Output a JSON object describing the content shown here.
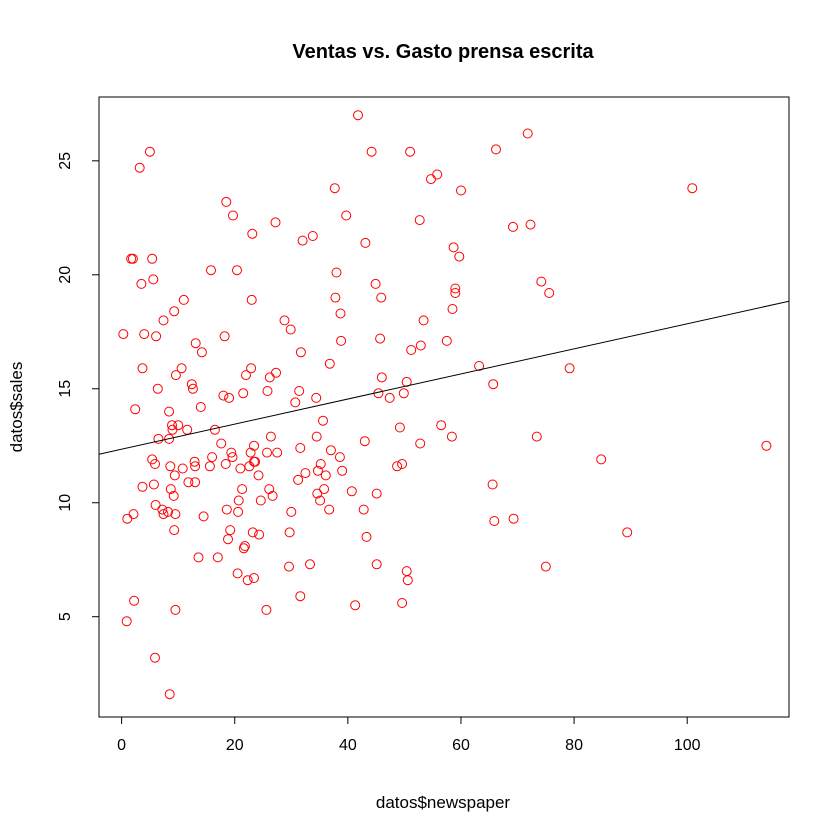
{
  "chart_data": {
    "type": "scatter",
    "title": "Ventas vs. Gasto prensa escrita",
    "xlabel": "datos$newspaper",
    "ylabel": "datos$sales",
    "xlim": [
      -4,
      118
    ],
    "ylim": [
      0.6,
      27.8
    ],
    "x_ticks": [
      0,
      20,
      40,
      60,
      80,
      100
    ],
    "y_ticks": [
      5,
      10,
      15,
      20,
      25
    ],
    "grid": false,
    "point_color": "#ff0000",
    "line_color": "#000000",
    "regression_line": {
      "intercept": 12.35,
      "slope": 0.055
    },
    "points": [
      [
        0.3,
        17.4
      ],
      [
        0.9,
        4.8
      ],
      [
        1.0,
        9.3
      ],
      [
        1.7,
        20.7
      ],
      [
        2.0,
        20.7
      ],
      [
        2.1,
        9.5
      ],
      [
        2.2,
        5.7
      ],
      [
        2.4,
        14.1
      ],
      [
        3.2,
        24.7
      ],
      [
        3.5,
        19.6
      ],
      [
        3.7,
        10.7
      ],
      [
        3.7,
        15.9
      ],
      [
        4.0,
        17.4
      ],
      [
        5.0,
        25.4
      ],
      [
        5.4,
        20.7
      ],
      [
        5.4,
        11.9
      ],
      [
        5.6,
        19.8
      ],
      [
        5.7,
        10.8
      ],
      [
        5.9,
        3.2
      ],
      [
        5.9,
        11.7
      ],
      [
        6.0,
        9.9
      ],
      [
        6.1,
        17.3
      ],
      [
        6.4,
        15.0
      ],
      [
        6.5,
        12.8
      ],
      [
        7.2,
        9.7
      ],
      [
        7.4,
        18.0
      ],
      [
        7.4,
        9.5
      ],
      [
        8.2,
        9.6
      ],
      [
        8.4,
        12.8
      ],
      [
        8.4,
        14.0
      ],
      [
        8.5,
        1.6
      ],
      [
        8.6,
        11.6
      ],
      [
        8.7,
        10.6
      ],
      [
        8.9,
        13.4
      ],
      [
        9.0,
        13.2
      ],
      [
        9.2,
        10.3
      ],
      [
        9.3,
        18.4
      ],
      [
        9.3,
        8.8
      ],
      [
        9.4,
        11.2
      ],
      [
        9.5,
        9.5
      ],
      [
        9.5,
        5.3
      ],
      [
        9.6,
        15.6
      ],
      [
        10.0,
        13.4
      ],
      [
        10.6,
        15.9
      ],
      [
        10.8,
        11.5
      ],
      [
        11.0,
        18.9
      ],
      [
        11.6,
        13.2
      ],
      [
        11.8,
        10.9
      ],
      [
        12.4,
        15.2
      ],
      [
        12.6,
        15.0
      ],
      [
        12.9,
        11.8
      ],
      [
        13.0,
        11.6
      ],
      [
        13.0,
        10.9
      ],
      [
        13.1,
        17.0
      ],
      [
        13.6,
        7.6
      ],
      [
        14.0,
        14.2
      ],
      [
        14.2,
        16.6
      ],
      [
        14.5,
        9.4
      ],
      [
        15.6,
        11.6
      ],
      [
        15.8,
        20.2
      ],
      [
        16.0,
        12.0
      ],
      [
        16.5,
        13.2
      ],
      [
        17.0,
        7.6
      ],
      [
        17.6,
        12.6
      ],
      [
        18.0,
        14.7
      ],
      [
        18.2,
        17.3
      ],
      [
        18.4,
        11.7
      ],
      [
        18.5,
        23.2
      ],
      [
        18.6,
        9.7
      ],
      [
        18.8,
        8.4
      ],
      [
        19.0,
        14.6
      ],
      [
        19.2,
        8.8
      ],
      [
        19.4,
        12.2
      ],
      [
        19.6,
        12.0
      ],
      [
        19.7,
        22.6
      ],
      [
        20.4,
        20.2
      ],
      [
        20.5,
        6.9
      ],
      [
        20.6,
        9.6
      ],
      [
        20.7,
        10.1
      ],
      [
        21.0,
        11.5
      ],
      [
        21.3,
        10.6
      ],
      [
        21.5,
        14.8
      ],
      [
        21.6,
        8.0
      ],
      [
        21.8,
        8.1
      ],
      [
        22.0,
        15.6
      ],
      [
        22.3,
        6.6
      ],
      [
        22.6,
        11.6
      ],
      [
        22.8,
        12.2
      ],
      [
        22.9,
        15.9
      ],
      [
        23.0,
        18.9
      ],
      [
        23.1,
        21.8
      ],
      [
        23.2,
        8.7
      ],
      [
        23.4,
        6.7
      ],
      [
        23.4,
        12.5
      ],
      [
        23.4,
        11.8
      ],
      [
        23.6,
        11.8
      ],
      [
        24.2,
        11.2
      ],
      [
        24.3,
        8.6
      ],
      [
        24.6,
        10.1
      ],
      [
        25.6,
        5.3
      ],
      [
        25.7,
        12.2
      ],
      [
        25.8,
        14.9
      ],
      [
        26.1,
        10.6
      ],
      [
        26.2,
        15.5
      ],
      [
        26.4,
        12.9
      ],
      [
        26.7,
        10.3
      ],
      [
        27.2,
        22.3
      ],
      [
        27.3,
        15.7
      ],
      [
        27.5,
        12.2
      ],
      [
        28.8,
        18.0
      ],
      [
        29.6,
        7.2
      ],
      [
        29.7,
        8.7
      ],
      [
        29.9,
        17.6
      ],
      [
        30.0,
        9.6
      ],
      [
        30.7,
        14.4
      ],
      [
        31.2,
        11.0
      ],
      [
        31.4,
        14.9
      ],
      [
        31.6,
        12.4
      ],
      [
        31.6,
        5.9
      ],
      [
        31.7,
        16.6
      ],
      [
        32.0,
        21.5
      ],
      [
        32.5,
        11.3
      ],
      [
        33.3,
        7.3
      ],
      [
        33.8,
        21.7
      ],
      [
        34.4,
        14.6
      ],
      [
        34.5,
        12.9
      ],
      [
        34.6,
        10.4
      ],
      [
        34.7,
        11.4
      ],
      [
        35.1,
        10.1
      ],
      [
        35.2,
        11.7
      ],
      [
        35.6,
        13.6
      ],
      [
        35.8,
        10.6
      ],
      [
        36.1,
        11.2
      ],
      [
        36.7,
        9.7
      ],
      [
        36.8,
        16.1
      ],
      [
        37.0,
        12.3
      ],
      [
        37.7,
        23.8
      ],
      [
        37.8,
        19.0
      ],
      [
        38.0,
        20.1
      ],
      [
        38.6,
        12.0
      ],
      [
        38.7,
        18.3
      ],
      [
        38.8,
        17.1
      ],
      [
        39.0,
        11.4
      ],
      [
        39.7,
        22.6
      ],
      [
        40.7,
        10.5
      ],
      [
        41.3,
        5.5
      ],
      [
        41.8,
        27.0
      ],
      [
        42.8,
        9.7
      ],
      [
        43.0,
        12.7
      ],
      [
        43.1,
        21.4
      ],
      [
        43.3,
        8.5
      ],
      [
        44.2,
        25.4
      ],
      [
        44.9,
        19.6
      ],
      [
        45.1,
        10.4
      ],
      [
        45.1,
        7.3
      ],
      [
        45.4,
        14.8
      ],
      [
        45.7,
        17.2
      ],
      [
        45.9,
        19.0
      ],
      [
        46.0,
        15.5
      ],
      [
        47.4,
        14.6
      ],
      [
        48.7,
        11.6
      ],
      [
        49.2,
        13.3
      ],
      [
        49.6,
        5.6
      ],
      [
        49.6,
        11.7
      ],
      [
        49.9,
        14.8
      ],
      [
        50.4,
        7.0
      ],
      [
        50.4,
        15.3
      ],
      [
        50.6,
        6.6
      ],
      [
        51.0,
        25.4
      ],
      [
        51.2,
        16.7
      ],
      [
        52.7,
        22.4
      ],
      [
        52.8,
        12.6
      ],
      [
        52.9,
        16.9
      ],
      [
        53.4,
        18.0
      ],
      [
        54.7,
        24.2
      ],
      [
        55.8,
        24.4
      ],
      [
        56.5,
        13.4
      ],
      [
        57.5,
        17.1
      ],
      [
        58.4,
        12.9
      ],
      [
        58.5,
        18.5
      ],
      [
        58.7,
        21.2
      ],
      [
        59.0,
        19.4
      ],
      [
        59.0,
        19.2
      ],
      [
        59.7,
        20.8
      ],
      [
        60.0,
        23.7
      ],
      [
        63.2,
        16.0
      ],
      [
        65.6,
        10.8
      ],
      [
        65.7,
        15.2
      ],
      [
        65.9,
        9.2
      ],
      [
        66.2,
        25.5
      ],
      [
        69.2,
        22.1
      ],
      [
        69.3,
        9.3
      ],
      [
        71.8,
        26.2
      ],
      [
        72.3,
        22.2
      ],
      [
        73.4,
        12.9
      ],
      [
        74.2,
        19.7
      ],
      [
        75.0,
        7.2
      ],
      [
        75.6,
        19.2
      ],
      [
        79.2,
        15.9
      ],
      [
        84.8,
        11.9
      ],
      [
        89.4,
        8.7
      ],
      [
        100.9,
        23.8
      ],
      [
        114.0,
        12.5
      ]
    ]
  }
}
